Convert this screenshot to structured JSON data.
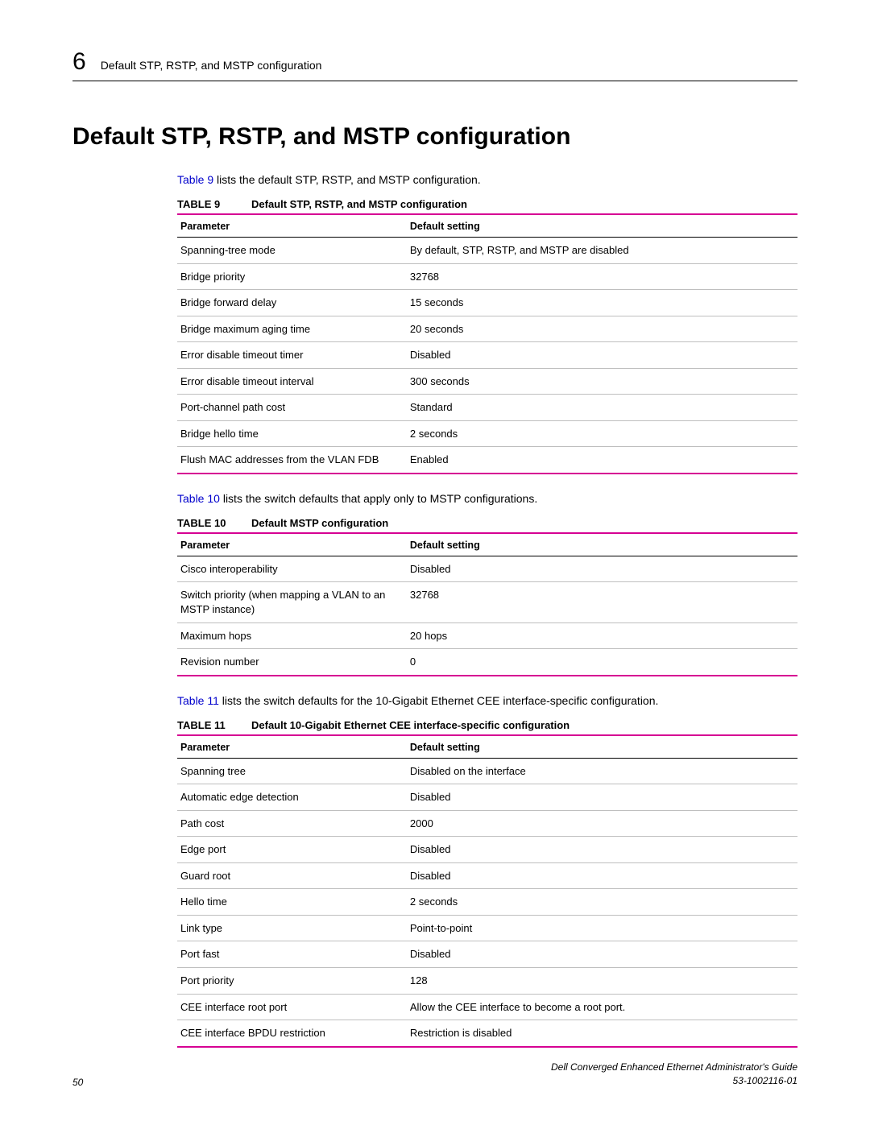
{
  "colors": {
    "accent": "#d60093",
    "rule": "#000000",
    "row_divider": "#bfbfbf",
    "link": "#0000cc"
  },
  "header": {
    "chapter_number": "6",
    "running_title": "Default STP, RSTP, and MSTP configuration"
  },
  "heading": "Default STP, RSTP, and MSTP configuration",
  "intro1": {
    "link": "Table 9",
    "rest": " lists the default STP, RSTP, and MSTP configuration."
  },
  "table9": {
    "number": "TABLE 9",
    "title": "Default STP, RSTP, and MSTP configuration",
    "col1": "Parameter",
    "col2": "Default setting",
    "rows": [
      [
        "Spanning-tree mode",
        "By default, STP, RSTP, and MSTP are disabled"
      ],
      [
        "Bridge priority",
        "32768"
      ],
      [
        "Bridge forward delay",
        "15 seconds"
      ],
      [
        "Bridge maximum aging time",
        "20 seconds"
      ],
      [
        "Error disable timeout timer",
        "Disabled"
      ],
      [
        "Error disable timeout interval",
        "300 seconds"
      ],
      [
        "Port-channel path cost",
        "Standard"
      ],
      [
        "Bridge hello time",
        "2 seconds"
      ],
      [
        "Flush MAC addresses from the VLAN FDB",
        "Enabled"
      ]
    ]
  },
  "intro2": {
    "link": "Table 10",
    "rest": " lists the switch defaults that apply only to MSTP configurations."
  },
  "table10": {
    "number": "TABLE 10",
    "title": "Default MSTP configuration",
    "col1": "Parameter",
    "col2": "Default setting",
    "rows": [
      [
        "Cisco interoperability",
        "Disabled"
      ],
      [
        "Switch priority (when mapping a VLAN to an MSTP instance)",
        "32768"
      ],
      [
        "Maximum hops",
        "20 hops"
      ],
      [
        "Revision number",
        "0"
      ]
    ]
  },
  "intro3": {
    "link": "Table 11",
    "rest": " lists the switch defaults for the 10-Gigabit Ethernet CEE interface-specific configuration."
  },
  "table11": {
    "number": "TABLE 11",
    "title": "Default 10-Gigabit Ethernet CEE interface-specific configuration",
    "col1": "Parameter",
    "col2": "Default setting",
    "rows": [
      [
        "Spanning tree",
        "Disabled on the interface"
      ],
      [
        "Automatic edge detection",
        "Disabled"
      ],
      [
        "Path cost",
        "2000"
      ],
      [
        "Edge port",
        "Disabled"
      ],
      [
        "Guard root",
        "Disabled"
      ],
      [
        "Hello time",
        "2 seconds"
      ],
      [
        "Link type",
        "Point-to-point"
      ],
      [
        "Port fast",
        "Disabled"
      ],
      [
        "Port priority",
        "128"
      ],
      [
        "CEE interface root port",
        "Allow the CEE interface to become a root port."
      ],
      [
        "CEE interface BPDU restriction",
        "Restriction is disabled"
      ]
    ]
  },
  "footer": {
    "page": "50",
    "book": "Dell Converged Enhanced Ethernet Administrator's Guide",
    "docnum": "53-1002116-01"
  }
}
